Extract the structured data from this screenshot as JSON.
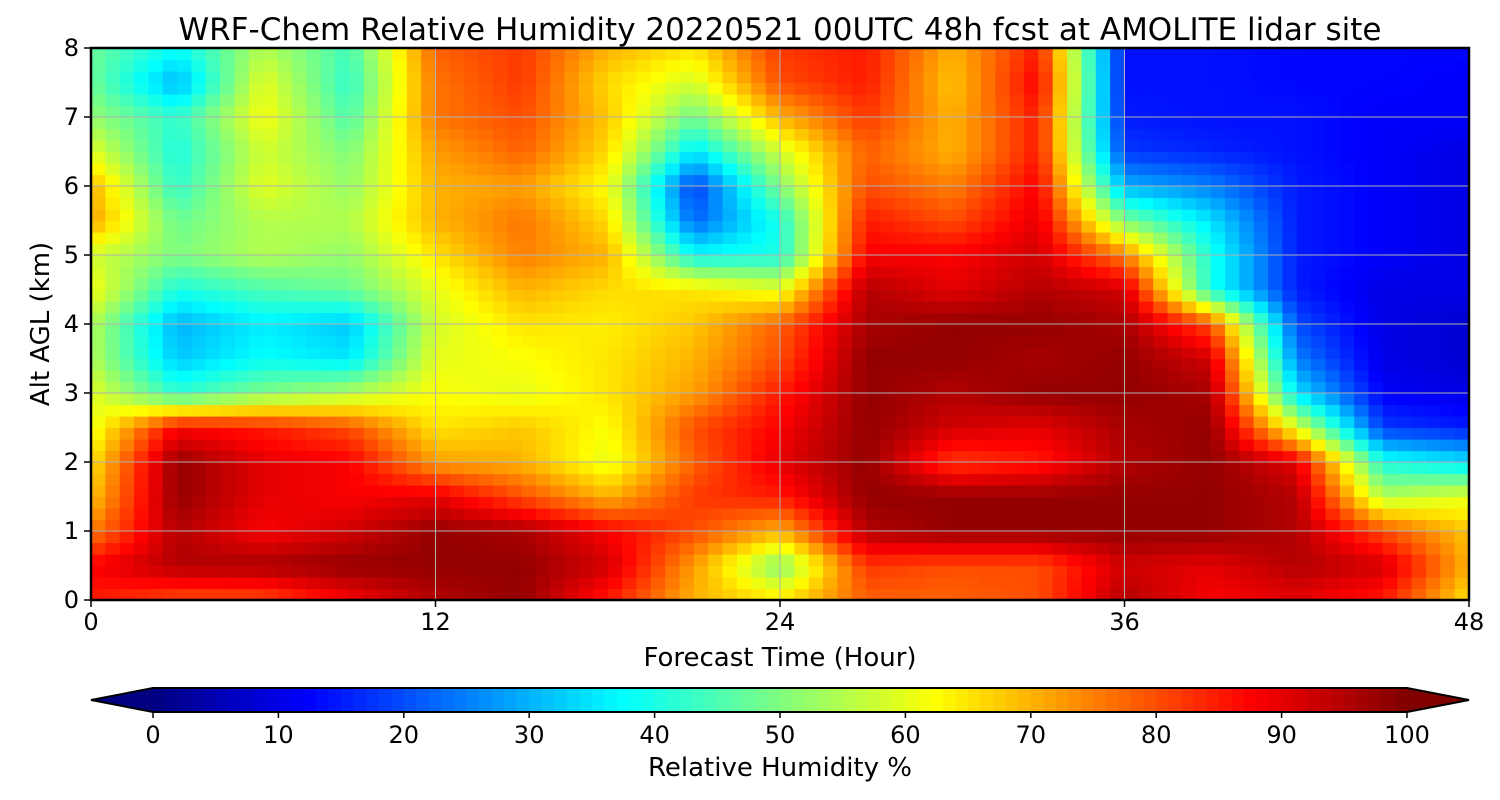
{
  "chart_data": {
    "type": "heatmap",
    "title": "WRF-Chem Relative Humidity 20220521 00UTC 48h fcst at AMOLITE lidar site",
    "xlabel": "Forecast Time (Hour)",
    "ylabel": "Alt AGL (km)",
    "xlim": [
      0,
      48
    ],
    "ylim": [
      0,
      8
    ],
    "x_ticks": [
      "0",
      "12",
      "24",
      "36",
      "48"
    ],
    "y_ticks": [
      "0",
      "1",
      "2",
      "3",
      "4",
      "5",
      "6",
      "7",
      "8"
    ],
    "grid": true,
    "colormap": "jet",
    "colorbar": {
      "label": "Relative Humidity %",
      "range": [
        0,
        100
      ],
      "ticks": [
        "0",
        "10",
        "20",
        "30",
        "40",
        "50",
        "60",
        "70",
        "80",
        "90",
        "100"
      ],
      "extend": "both",
      "orientation": "horizontal"
    },
    "x": [
      0,
      3,
      6,
      9,
      12,
      15,
      18,
      21,
      24,
      27,
      30,
      33,
      36,
      39,
      42,
      45,
      48
    ],
    "y": [
      0,
      0.5,
      1,
      1.5,
      2,
      2.5,
      3,
      3.5,
      4,
      4.5,
      5,
      5.5,
      6,
      6.5,
      7,
      7.5,
      8
    ],
    "z": [
      [
        85,
        80,
        80,
        88,
        95,
        98,
        85,
        70,
        65,
        78,
        78,
        80,
        95,
        88,
        90,
        85,
        65
      ],
      [
        88,
        95,
        96,
        98,
        98,
        98,
        92,
        72,
        50,
        82,
        80,
        80,
        92,
        90,
        95,
        92,
        70
      ],
      [
        75,
        95,
        88,
        92,
        98,
        96,
        88,
        80,
        70,
        95,
        98,
        98,
        98,
        98,
        95,
        80,
        68
      ],
      [
        68,
        98,
        90,
        88,
        90,
        80,
        70,
        82,
        85,
        98,
        98,
        98,
        98,
        98,
        95,
        55,
        60
      ],
      [
        65,
        98,
        90,
        88,
        72,
        70,
        60,
        78,
        90,
        98,
        82,
        85,
        95,
        98,
        90,
        40,
        35
      ],
      [
        60,
        88,
        85,
        80,
        65,
        68,
        62,
        80,
        88,
        98,
        92,
        90,
        96,
        98,
        60,
        18,
        15
      ],
      [
        60,
        42,
        50,
        55,
        62,
        60,
        65,
        72,
        85,
        98,
        95,
        98,
        98,
        96,
        35,
        12,
        10
      ],
      [
        55,
        32,
        38,
        35,
        60,
        62,
        65,
        70,
        80,
        98,
        98,
        96,
        98,
        92,
        25,
        10,
        8
      ],
      [
        55,
        30,
        36,
        32,
        58,
        65,
        64,
        68,
        78,
        96,
        98,
        98,
        96,
        80,
        20,
        10,
        8
      ],
      [
        62,
        40,
        45,
        48,
        60,
        70,
        66,
        65,
        60,
        95,
        90,
        95,
        92,
        40,
        15,
        10,
        10
      ],
      [
        58,
        50,
        55,
        52,
        65,
        75,
        70,
        38,
        40,
        88,
        88,
        92,
        75,
        40,
        15,
        12,
        10
      ],
      [
        72,
        48,
        55,
        55,
        70,
        76,
        66,
        22,
        40,
        85,
        80,
        90,
        50,
        35,
        15,
        12,
        10
      ],
      [
        70,
        42,
        60,
        52,
        70,
        72,
        62,
        18,
        50,
        80,
        75,
        88,
        30,
        25,
        15,
        12,
        10
      ],
      [
        60,
        40,
        58,
        50,
        72,
        78,
        66,
        35,
        58,
        78,
        70,
        85,
        18,
        16,
        14,
        12,
        10
      ],
      [
        52,
        42,
        62,
        45,
        76,
        80,
        68,
        48,
        70,
        82,
        70,
        85,
        15,
        14,
        14,
        12,
        12
      ],
      [
        48,
        30,
        60,
        42,
        76,
        82,
        66,
        58,
        80,
        85,
        68,
        88,
        14,
        14,
        13,
        13,
        12
      ],
      [
        48,
        38,
        55,
        44,
        78,
        82,
        70,
        65,
        82,
        85,
        70,
        85,
        14,
        14,
        13,
        13,
        13
      ]
    ]
  }
}
